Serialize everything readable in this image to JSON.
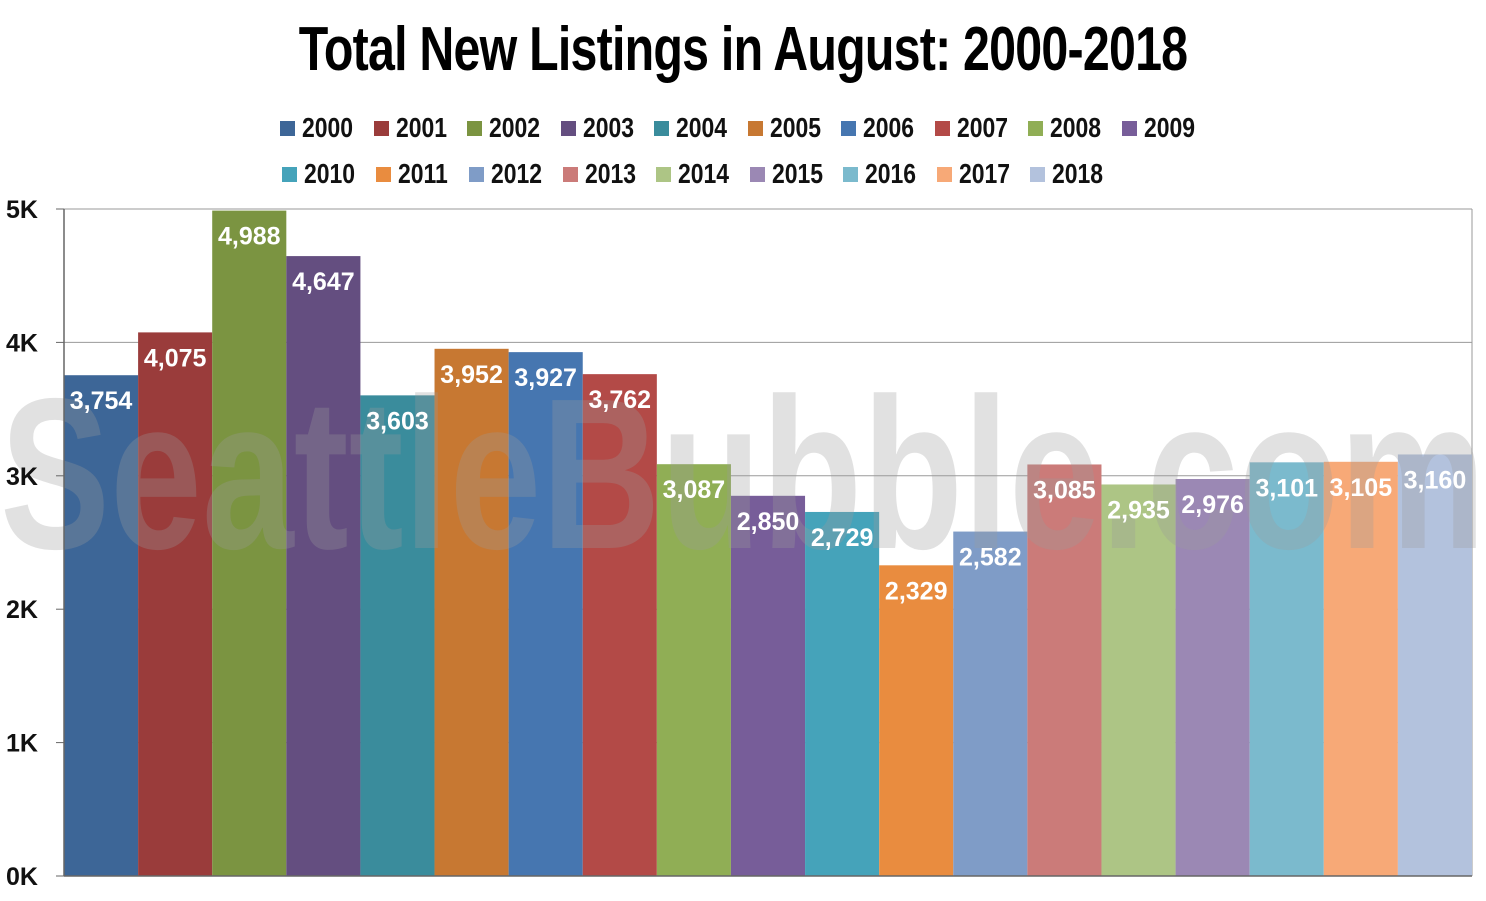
{
  "chart_data": {
    "type": "bar",
    "title": "Total New Listings in August: 2000-2018",
    "xlabel": "",
    "ylabel": "",
    "ylim": [
      0,
      5000
    ],
    "yticks": [
      {
        "value": 0,
        "label": "0K"
      },
      {
        "value": 1000,
        "label": "1K"
      },
      {
        "value": 2000,
        "label": "2K"
      },
      {
        "value": 3000,
        "label": "3K"
      },
      {
        "value": 4000,
        "label": "4K"
      },
      {
        "value": 5000,
        "label": "5K"
      }
    ],
    "grid": true,
    "legend_position": "top",
    "watermark": "SeattleBubble.com",
    "series": [
      {
        "name": "2000",
        "value": 3754,
        "label": "3,754",
        "color": "#3d6697"
      },
      {
        "name": "2001",
        "value": 4075,
        "label": "4,075",
        "color": "#9a3c3b"
      },
      {
        "name": "2002",
        "value": 4988,
        "label": "4,988",
        "color": "#7b9441"
      },
      {
        "name": "2003",
        "value": 4647,
        "label": "4,647",
        "color": "#644e80"
      },
      {
        "name": "2004",
        "value": 3603,
        "label": "3,603",
        "color": "#3a8c9c"
      },
      {
        "name": "2005",
        "value": 3952,
        "label": "3,952",
        "color": "#c77832"
      },
      {
        "name": "2006",
        "value": 3927,
        "label": "3,927",
        "color": "#4676b0"
      },
      {
        "name": "2007",
        "value": 3762,
        "label": "3,762",
        "color": "#b34a47"
      },
      {
        "name": "2008",
        "value": 3087,
        "label": "3,087",
        "color": "#90ae55"
      },
      {
        "name": "2009",
        "value": 2850,
        "label": "2,850",
        "color": "#775d99"
      },
      {
        "name": "2010",
        "value": 2729,
        "label": "2,729",
        "color": "#45a3ba"
      },
      {
        "name": "2011",
        "value": 2329,
        "label": "2,329",
        "color": "#e98c3f"
      },
      {
        "name": "2012",
        "value": 2582,
        "label": "2,582",
        "color": "#7f9cc7"
      },
      {
        "name": "2013",
        "value": 3085,
        "label": "3,085",
        "color": "#cb7b79"
      },
      {
        "name": "2014",
        "value": 2935,
        "label": "2,935",
        "color": "#adc585"
      },
      {
        "name": "2015",
        "value": 2976,
        "label": "2,976",
        "color": "#9b88b4"
      },
      {
        "name": "2016",
        "value": 3101,
        "label": "3,101",
        "color": "#7bbacd"
      },
      {
        "name": "2017",
        "value": 3105,
        "label": "3,105",
        "color": "#f7a977"
      },
      {
        "name": "2018",
        "value": 3160,
        "label": "3,160",
        "color": "#b3c2dd"
      }
    ]
  }
}
